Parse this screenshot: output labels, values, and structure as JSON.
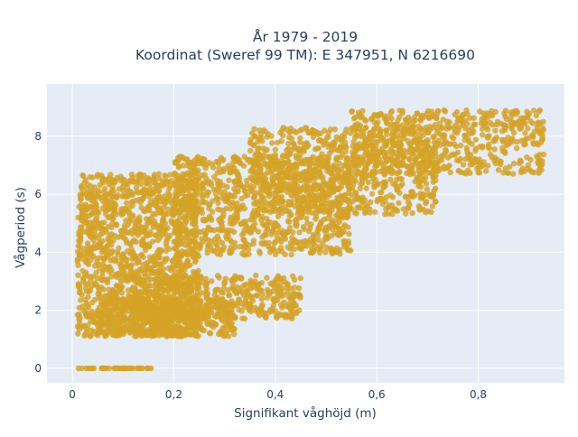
{
  "chart_data": {
    "type": "scatter",
    "title_line1": "År 1979 - 2019",
    "title_line2": "Koordinat (Sweref 99 TM): E 347951, N 6216690",
    "xlabel": "Signifikant våghöjd (m)",
    "ylabel": "Vågperiod (s)",
    "xlim": [
      -0.05,
      0.97
    ],
    "ylim": [
      -0.5,
      9.8
    ],
    "x_ticks": [
      0,
      0.2,
      0.4,
      0.6,
      0.8
    ],
    "x_tick_labels": [
      "0",
      "0,2",
      "0,4",
      "0,6",
      "0,8"
    ],
    "y_ticks": [
      0,
      2,
      4,
      6,
      8
    ],
    "y_tick_labels": [
      "0",
      "2",
      "4",
      "6",
      "8"
    ],
    "grid": true,
    "colors": {
      "marker": "#d4a326",
      "plot_bg": "#e5ecf6",
      "grid": "#ffffff"
    },
    "series": [
      {
        "clusters": [
          {
            "x0": 0.01,
            "x1": 0.25,
            "y0": 1.1,
            "y1": 6.7,
            "count": 1400
          },
          {
            "x0": 0.05,
            "x1": 0.32,
            "y0": 1.1,
            "y1": 2.4,
            "count": 500
          },
          {
            "x0": 0.12,
            "x1": 0.45,
            "y0": 1.7,
            "y1": 3.2,
            "count": 450
          },
          {
            "x0": 0.2,
            "x1": 0.55,
            "y0": 3.9,
            "y1": 7.3,
            "count": 900
          },
          {
            "x0": 0.35,
            "x1": 0.72,
            "y0": 5.3,
            "y1": 8.3,
            "count": 800
          },
          {
            "x0": 0.55,
            "x1": 0.93,
            "y0": 6.7,
            "y1": 8.9,
            "count": 600
          },
          {
            "x0": 0.01,
            "x1": 0.16,
            "y0": 0.0,
            "y1": 0.0,
            "count": 40
          }
        ]
      }
    ]
  }
}
